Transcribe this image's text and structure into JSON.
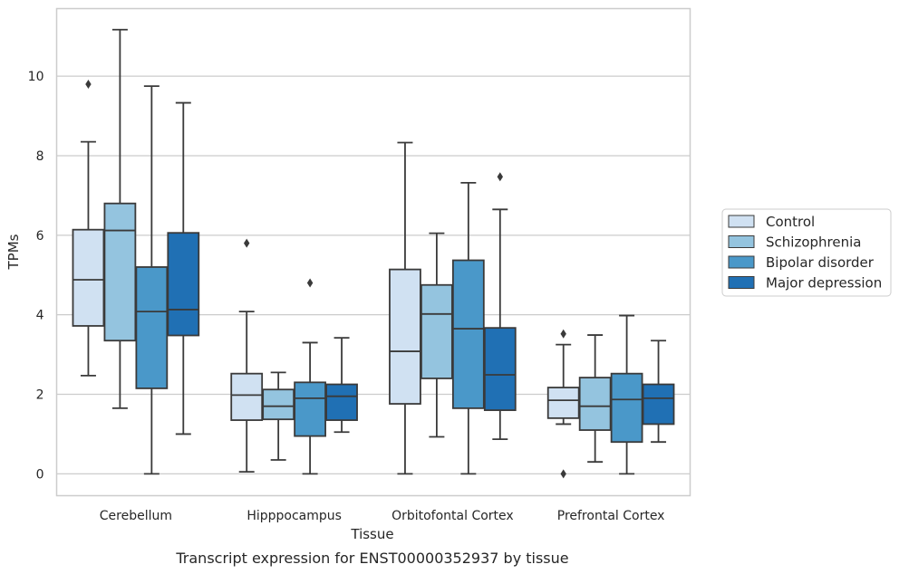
{
  "chart_data": {
    "type": "box",
    "xlabel": "Tissue",
    "ylabel": "TPMs",
    "caption": "Transcript expression for ENST00000352937 by tissue",
    "ylim": [
      -0.55,
      11.7
    ],
    "yticks": [
      0,
      2,
      4,
      6,
      8,
      10
    ],
    "grid": "horizontal",
    "legend_position": "right",
    "categories": [
      "Cerebellum",
      "Hipppocampus",
      "Orbitofontal Cortex",
      "Prefrontal Cortex"
    ],
    "series": [
      {
        "name": "Control",
        "color": "#d0e1f2",
        "boxes": [
          {
            "whisker_low": 2.47,
            "q1": 3.72,
            "median": 4.88,
            "q3": 6.14,
            "whisker_high": 8.35,
            "outliers": [
              9.8
            ]
          },
          {
            "whisker_low": 0.05,
            "q1": 1.35,
            "median": 1.98,
            "q3": 2.52,
            "whisker_high": 4.08,
            "outliers": [
              5.8
            ]
          },
          {
            "whisker_low": 0.0,
            "q1": 1.76,
            "median": 3.08,
            "q3": 5.14,
            "whisker_high": 8.33,
            "outliers": []
          },
          {
            "whisker_low": 1.25,
            "q1": 1.4,
            "median": 1.85,
            "q3": 2.17,
            "whisker_high": 3.25,
            "outliers": [
              3.52,
              0.0
            ]
          }
        ]
      },
      {
        "name": "Schizophrenia",
        "color": "#94c4df",
        "boxes": [
          {
            "whisker_low": 1.65,
            "q1": 3.35,
            "median": 6.12,
            "q3": 6.8,
            "whisker_high": 11.17,
            "outliers": []
          },
          {
            "whisker_low": 0.35,
            "q1": 1.37,
            "median": 1.7,
            "q3": 2.12,
            "whisker_high": 2.55,
            "outliers": []
          },
          {
            "whisker_low": 0.93,
            "q1": 2.4,
            "median": 4.02,
            "q3": 4.75,
            "whisker_high": 6.05,
            "outliers": []
          },
          {
            "whisker_low": 0.3,
            "q1": 1.1,
            "median": 1.7,
            "q3": 2.42,
            "whisker_high": 3.49,
            "outliers": []
          }
        ]
      },
      {
        "name": "Bipolar disorder",
        "color": "#4a98c9",
        "boxes": [
          {
            "whisker_low": 0.0,
            "q1": 2.15,
            "median": 4.08,
            "q3": 5.2,
            "whisker_high": 9.75,
            "outliers": []
          },
          {
            "whisker_low": 0.0,
            "q1": 0.95,
            "median": 1.9,
            "q3": 2.3,
            "whisker_high": 3.3,
            "outliers": [
              4.8
            ]
          },
          {
            "whisker_low": 0.0,
            "q1": 1.65,
            "median": 3.65,
            "q3": 5.37,
            "whisker_high": 7.32,
            "outliers": []
          },
          {
            "whisker_low": 0.0,
            "q1": 0.8,
            "median": 1.87,
            "q3": 2.52,
            "whisker_high": 3.98,
            "outliers": []
          }
        ]
      },
      {
        "name": "Major depression",
        "color": "#2070b4",
        "boxes": [
          {
            "whisker_low": 1.0,
            "q1": 3.48,
            "median": 4.13,
            "q3": 6.06,
            "whisker_high": 9.33,
            "outliers": []
          },
          {
            "whisker_low": 1.05,
            "q1": 1.35,
            "median": 1.95,
            "q3": 2.25,
            "whisker_high": 3.42,
            "outliers": []
          },
          {
            "whisker_low": 0.87,
            "q1": 1.6,
            "median": 2.49,
            "q3": 3.67,
            "whisker_high": 6.65,
            "outliers": [
              7.47
            ]
          },
          {
            "whisker_low": 0.8,
            "q1": 1.25,
            "median": 1.9,
            "q3": 2.25,
            "whisker_high": 3.35,
            "outliers": []
          }
        ]
      }
    ]
  }
}
